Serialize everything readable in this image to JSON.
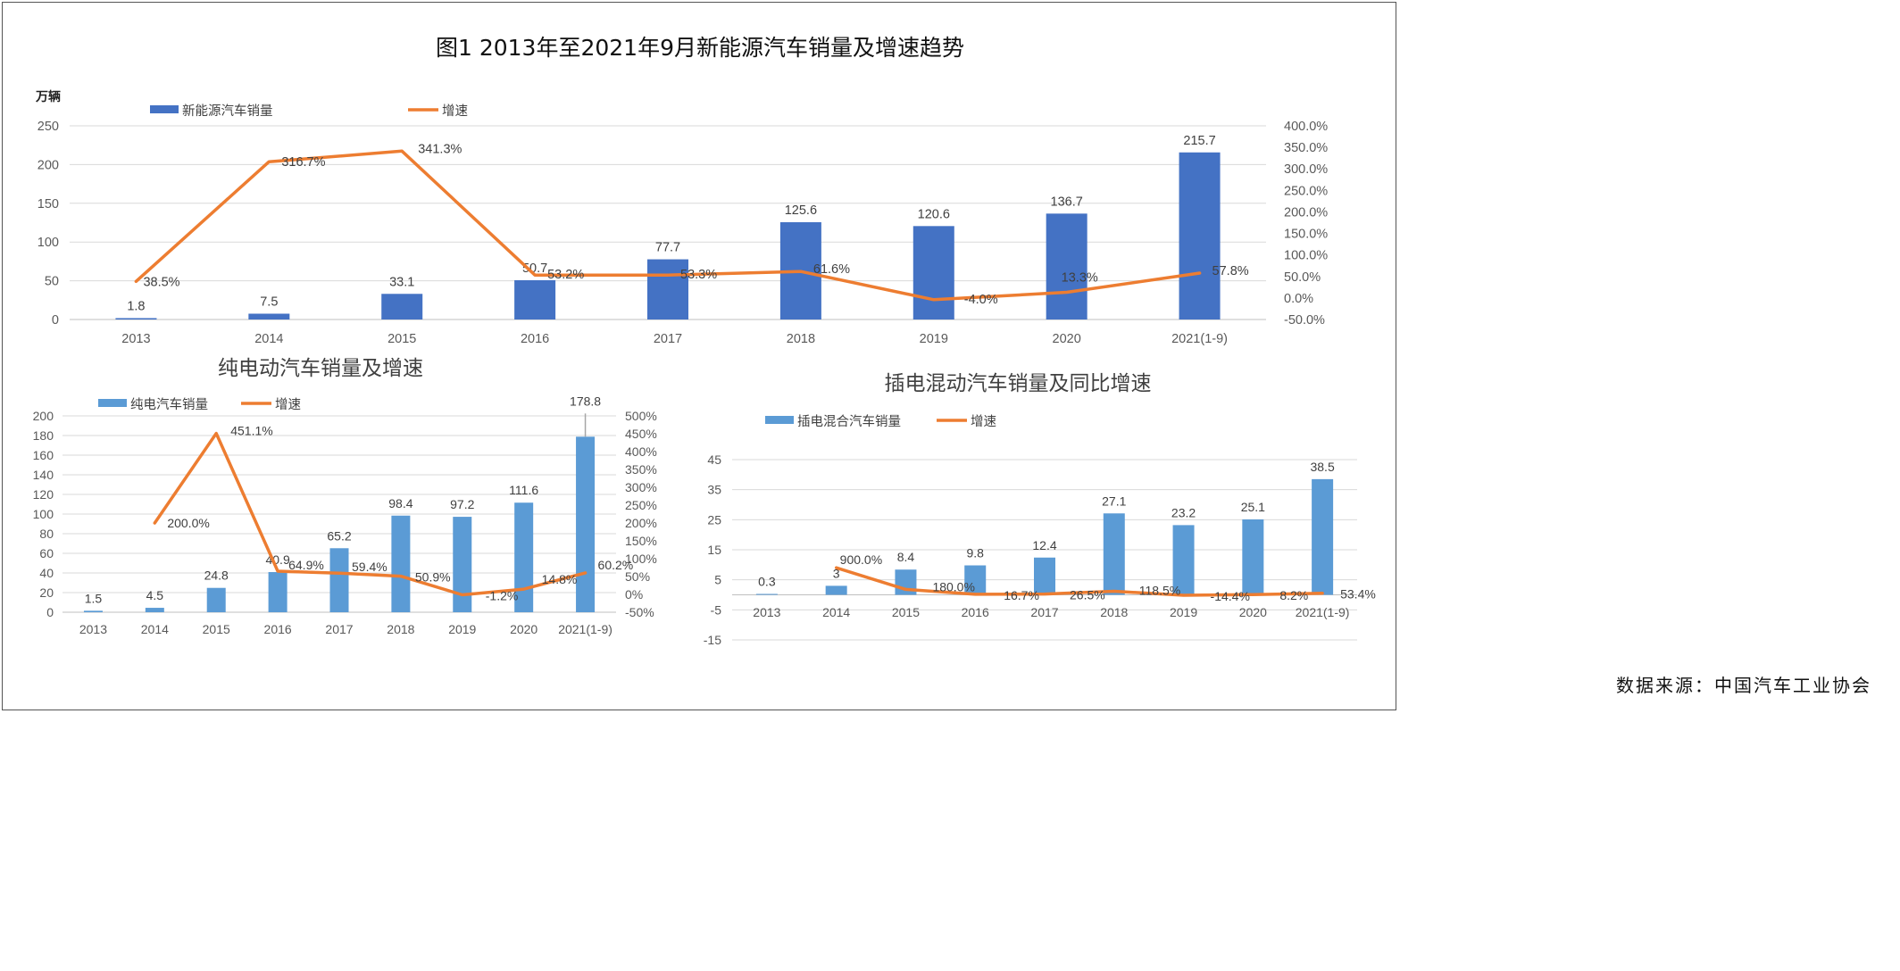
{
  "title": "图1 2013年至2021年9月新能源汽车销量及增速趋势",
  "source": "数据来源：中国汽车工业协会",
  "colors": {
    "bar_main": "#4472c4",
    "bar_sub": "#5b9bd5",
    "line": "#ed7d31",
    "grid": "#d9d9d9",
    "axis_text": "#595959"
  },
  "chart_data": [
    {
      "type": "bar",
      "title": "",
      "unit": "万辆",
      "categories": [
        "2013",
        "2014",
        "2015",
        "2016",
        "2017",
        "2018",
        "2019",
        "2020",
        "2021(1-9)"
      ],
      "series": [
        {
          "name": "新能源汽车销量",
          "kind": "bar",
          "axis": "left",
          "values": [
            1.8,
            7.5,
            33.1,
            50.7,
            77.7,
            125.6,
            120.6,
            136.7,
            215.7
          ],
          "labels": [
            "1.8",
            "7.5",
            "33.1",
            "50.7",
            "77.7",
            "125.6",
            "120.6",
            "136.7",
            "215.7"
          ]
        },
        {
          "name": "增速",
          "kind": "line",
          "axis": "right",
          "values": [
            38.5,
            316.7,
            341.3,
            53.2,
            53.3,
            61.6,
            -4.0,
            13.3,
            57.8
          ],
          "labels": [
            "38.5%",
            "316.7%",
            "341.3%",
            "53.2%",
            "53.3%",
            "61.6%",
            "-4.0%",
            "13.3%",
            "57.8%"
          ]
        }
      ],
      "ylim": [
        0,
        250
      ],
      "y_ticks": [
        "0",
        "50",
        "100",
        "150",
        "200",
        "250"
      ],
      "y2lim": [
        -50,
        400
      ],
      "y2_ticks": [
        "-50.0%",
        "0.0%",
        "50.0%",
        "100.0%",
        "150.0%",
        "200.0%",
        "250.0%",
        "300.0%",
        "350.0%",
        "400.0%"
      ],
      "grid": true,
      "legend": "top-left"
    },
    {
      "type": "bar",
      "title": "纯电动汽车销量及增速",
      "categories": [
        "2013",
        "2014",
        "2015",
        "2016",
        "2017",
        "2018",
        "2019",
        "2020",
        "2021(1-9)"
      ],
      "series": [
        {
          "name": "纯电汽车销量",
          "kind": "bar",
          "axis": "left",
          "values": [
            1.5,
            4.5,
            24.8,
            40.9,
            65.2,
            98.4,
            97.2,
            111.6,
            178.8
          ],
          "labels": [
            "1.5",
            "4.5",
            "24.8",
            "40.9",
            "65.2",
            "98.4",
            "97.2",
            "111.6",
            "178.8"
          ]
        },
        {
          "name": "增速",
          "kind": "line",
          "axis": "right",
          "values": [
            null,
            200.0,
            451.1,
            64.9,
            59.4,
            50.9,
            -1.2,
            14.8,
            60.2
          ],
          "labels": [
            "",
            "200.0%",
            "451.1%",
            "64.9%",
            "59.4%",
            "50.9%",
            "-1.2%",
            "14.8%",
            "60.2%"
          ]
        }
      ],
      "ylim": [
        0,
        200
      ],
      "y_ticks": [
        "0",
        "20",
        "40",
        "60",
        "80",
        "100",
        "120",
        "140",
        "160",
        "180",
        "200"
      ],
      "y2lim": [
        -50,
        500
      ],
      "y2_ticks": [
        "-50%",
        "0%",
        "50%",
        "100%",
        "150%",
        "200%",
        "250%",
        "300%",
        "350%",
        "400%",
        "450%",
        "500%"
      ],
      "grid": true,
      "legend": "top-left"
    },
    {
      "type": "bar",
      "title": "插电混动汽车销量及同比增速",
      "categories": [
        "2013",
        "2014",
        "2015",
        "2016",
        "2017",
        "2018",
        "2019",
        "2020",
        "2021(1-9)"
      ],
      "series": [
        {
          "name": "插电混合汽车销量",
          "kind": "bar",
          "axis": "left",
          "values": [
            0.3,
            3,
            8.4,
            9.8,
            12.4,
            27.1,
            23.2,
            25.1,
            38.5
          ],
          "labels": [
            "0.3",
            "3",
            "8.4",
            "9.8",
            "12.4",
            "27.1",
            "23.2",
            "25.1",
            "38.5"
          ]
        },
        {
          "name": "增速",
          "kind": "line",
          "axis": "left",
          "values": [
            null,
            9.0,
            1.8,
            0.167,
            0.265,
            1.185,
            -0.144,
            0.082,
            0.534
          ],
          "labels": [
            "",
            "900.0%",
            "180.0%",
            "16.7%",
            "26.5%",
            "118.5%",
            "-14.4%",
            "8.2%",
            "53.4%"
          ]
        }
      ],
      "ylim": [
        -15,
        45
      ],
      "y_ticks": [
        "-15",
        "-5",
        "5",
        "15",
        "25",
        "35",
        "45"
      ],
      "grid": true,
      "legend": "top-left"
    }
  ]
}
